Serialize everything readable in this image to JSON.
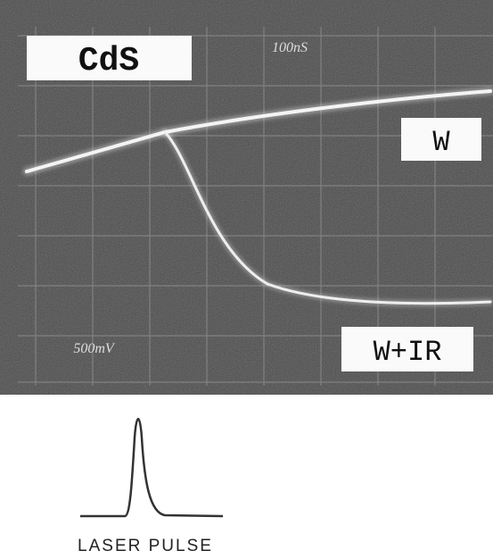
{
  "screen": {
    "label_top_left": "CdS",
    "time_scale": "100nS",
    "volt_scale": "500mV",
    "trace_upper": "W",
    "trace_lower": "W+IR"
  },
  "inset": {
    "caption": "LASER PULSE"
  }
}
